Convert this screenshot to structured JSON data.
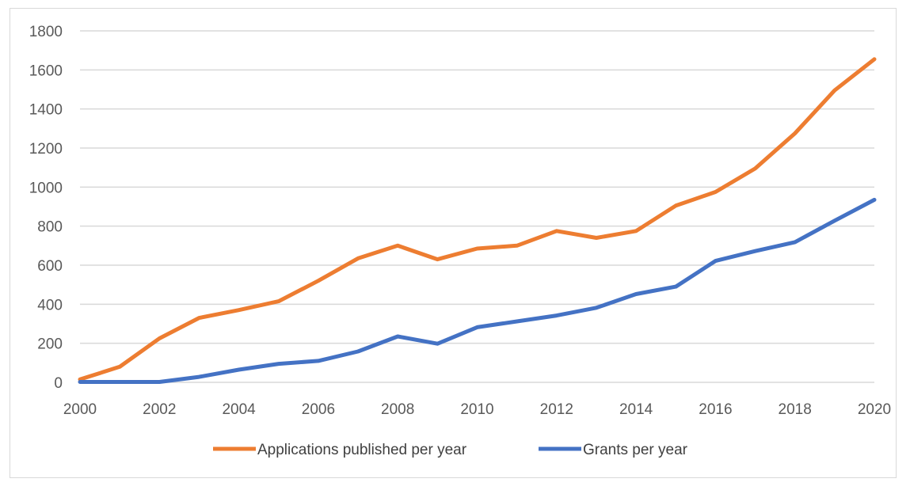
{
  "chart_data": {
    "type": "line",
    "title": "",
    "xlabel": "",
    "ylabel": "",
    "x": [
      2000,
      2001,
      2002,
      2003,
      2004,
      2005,
      2006,
      2007,
      2008,
      2009,
      2010,
      2011,
      2012,
      2013,
      2014,
      2015,
      2016,
      2017,
      2018,
      2019,
      2020
    ],
    "x_tick_labels": [
      "2000",
      "2002",
      "2004",
      "2006",
      "2008",
      "2010",
      "2012",
      "2014",
      "2016",
      "2018",
      "2020"
    ],
    "y_tick_labels": [
      "0",
      "200",
      "400",
      "600",
      "800",
      "1000",
      "1200",
      "1400",
      "1600",
      "1800"
    ],
    "ylim": [
      0,
      1800
    ],
    "grid": "horizontal",
    "legend_position": "bottom",
    "series": [
      {
        "name": "Applications published per year",
        "color": "#ED7D31",
        "values": [
          15,
          80,
          225,
          330,
          370,
          415,
          520,
          635,
          700,
          630,
          685,
          700,
          775,
          740,
          775,
          905,
          975,
          1095,
          1275,
          1495,
          1655
        ]
      },
      {
        "name": "Grants per year",
        "color": "#4472C4",
        "values": [
          2,
          2,
          2,
          28,
          65,
          95,
          110,
          158,
          235,
          198,
          282,
          312,
          342,
          382,
          452,
          490,
          622,
          672,
          718,
          828,
          935
        ]
      }
    ]
  }
}
